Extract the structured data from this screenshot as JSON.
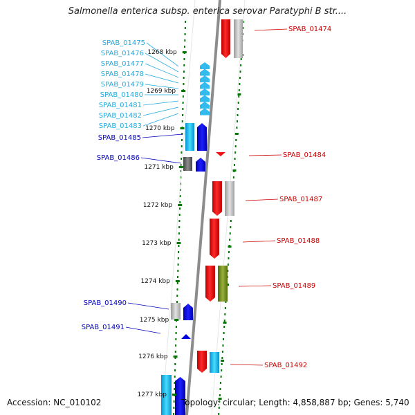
{
  "title": "Salmonella enterica subsp. enterica serovar Paratyphi B str....",
  "footer": {
    "accession": "Accession: NC_010102",
    "topology": "Topology: circular; Length: 4,858,887 bp; Genes: 5,740"
  },
  "colors": {
    "forward_label": "#cc0000",
    "reverse_label_light": "#22aadd",
    "reverse_label_dark": "#0000bb",
    "backbone": "#8c8c8c",
    "ruler_dots": "#007700"
  },
  "ticks": [
    {
      "label": "1268 kbp"
    },
    {
      "label": "1269 kbp"
    },
    {
      "label": "1270 kbp"
    },
    {
      "label": "1271 kbp"
    },
    {
      "label": "1272 kbp"
    },
    {
      "label": "1273 kbp"
    },
    {
      "label": "1274 kbp"
    },
    {
      "label": "1275 kbp"
    },
    {
      "label": "1276 kbp"
    },
    {
      "label": "1277 kbp"
    }
  ],
  "genes_left": [
    {
      "label": "SPAB_01475",
      "color": "#22aadd"
    },
    {
      "label": "SPAB_01476",
      "color": "#22aadd"
    },
    {
      "label": "SPAB_01477",
      "color": "#22aadd"
    },
    {
      "label": "SPAB_01478",
      "color": "#22aadd"
    },
    {
      "label": "SPAB_01479",
      "color": "#22aadd"
    },
    {
      "label": "SPAB_01480",
      "color": "#22aadd"
    },
    {
      "label": "SPAB_01481",
      "color": "#22aadd"
    },
    {
      "label": "SPAB_01482",
      "color": "#22aadd"
    },
    {
      "label": "SPAB_01483",
      "color": "#22aadd"
    },
    {
      "label": "SPAB_01485",
      "color": "#0000bb"
    },
    {
      "label": "SPAB_01486",
      "color": "#0000bb"
    },
    {
      "label": "SPAB_01490",
      "color": "#0000bb"
    },
    {
      "label": "SPAB_01491",
      "color": "#0000bb"
    }
  ],
  "genes_right": [
    {
      "label": "SPAB_01474"
    },
    {
      "label": "SPAB_01484"
    },
    {
      "label": "SPAB_01487"
    },
    {
      "label": "SPAB_01488"
    },
    {
      "label": "SPAB_01489"
    },
    {
      "label": "SPAB_01492"
    }
  ]
}
